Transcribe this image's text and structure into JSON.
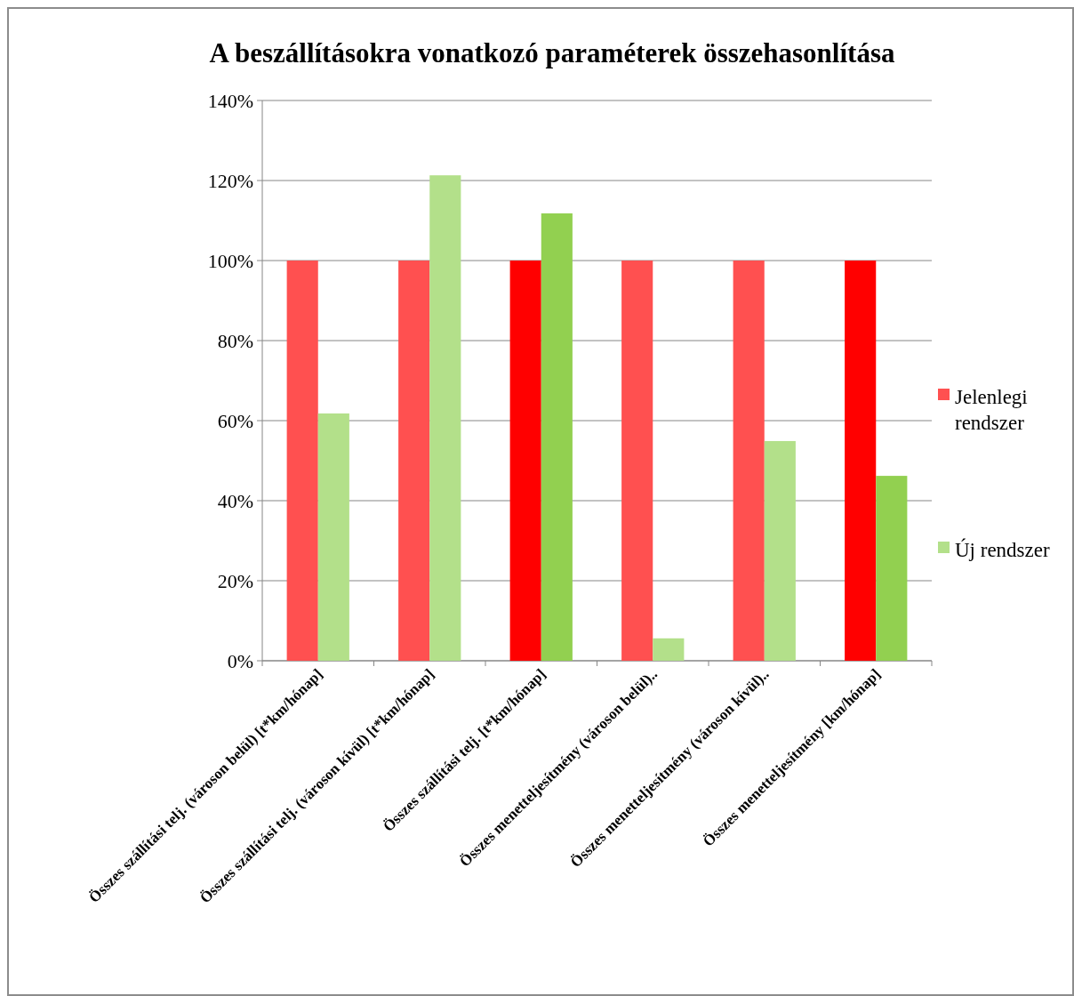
{
  "chart_data": {
    "type": "bar",
    "title": "A beszállításokra vonatkozó paraméterek összehasonlítása",
    "categories": [
      "Összes szállítási telj. (városon belül) [t*km/hónap]",
      "Összes szállítási telj. (városon kívül) [t*km/hónap]",
      "Összes szállítási telj.  [t*km/hónap]",
      "Összes menetteljesítmény (városon belül)..",
      "Összes menetteljesítmény (városon kívül)..",
      "Összes menetteljesítmény  [km/hónap]"
    ],
    "series": [
      {
        "name": "Jelenlegi rendszer",
        "color": "#ff5050",
        "colors": [
          "#ff5050",
          "#ff5050",
          "#ff0000",
          "#ff5050",
          "#ff5050",
          "#ff0000"
        ],
        "values": [
          100,
          100,
          100,
          100,
          100,
          100
        ]
      },
      {
        "name": "Új rendszer",
        "color": "#b3e08a",
        "colors": [
          "#b3e08a",
          "#b3e08a",
          "#92d050",
          "#b3e08a",
          "#b3e08a",
          "#92d050"
        ],
        "values": [
          61.8,
          121.3,
          111.8,
          5.6,
          54.9,
          46.2
        ]
      }
    ],
    "ylim": [
      0,
      140
    ],
    "yticks": [
      {
        "value": 0,
        "label": "0%"
      },
      {
        "value": 20,
        "label": "20%"
      },
      {
        "value": 40,
        "label": "40%"
      },
      {
        "value": 60,
        "label": "60%"
      },
      {
        "value": 80,
        "label": "80%"
      },
      {
        "value": 100,
        "label": "100%"
      },
      {
        "value": 120,
        "label": "120%"
      },
      {
        "value": 140,
        "label": "140%"
      }
    ],
    "grid": "y",
    "legend": "right"
  }
}
